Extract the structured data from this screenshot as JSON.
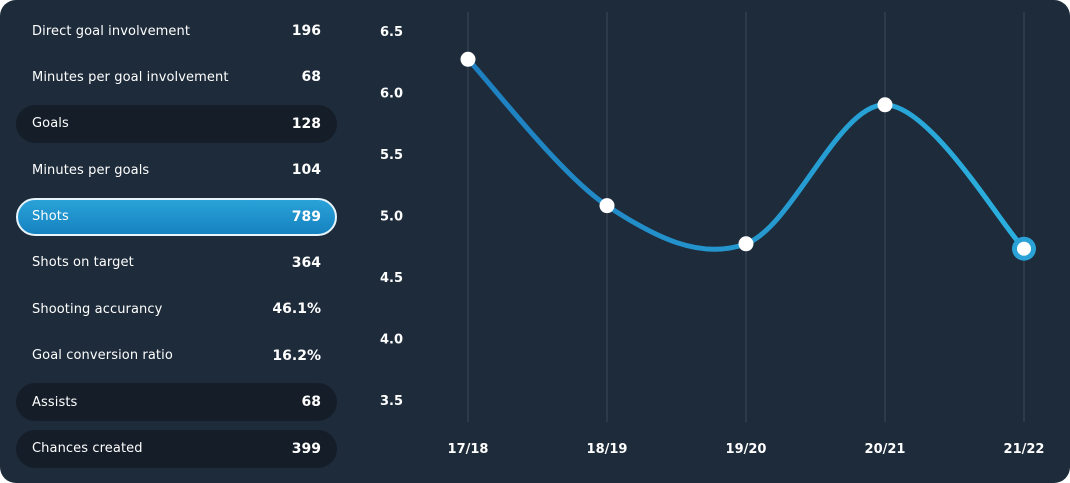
{
  "stats": [
    {
      "label": "Direct goal involvement",
      "value": "196",
      "style": "plain"
    },
    {
      "label": "Minutes per goal involvement",
      "value": "68",
      "style": "plain"
    },
    {
      "label": "Goals",
      "value": "128",
      "style": "dark"
    },
    {
      "label": "Minutes per goals",
      "value": "104",
      "style": "plain"
    },
    {
      "label": "Shots",
      "value": "789",
      "style": "active"
    },
    {
      "label": "Shots on target",
      "value": "364",
      "style": "plain"
    },
    {
      "label": "Shooting accurancy",
      "value": "46.1%",
      "style": "plain"
    },
    {
      "label": "Goal conversion ratio",
      "value": "16.2%",
      "style": "plain"
    },
    {
      "label": "Assists",
      "value": "68",
      "style": "dark"
    },
    {
      "label": "Chances created",
      "value": "399",
      "style": "dark"
    }
  ],
  "colors": {
    "background": "#1d2b3a",
    "dark_row": "#151d28",
    "accent": "#1f9ad6",
    "line": "#2aa2d8",
    "grid": "#3a4a5a",
    "text": "#ffffff"
  },
  "chart_data": {
    "type": "line",
    "categories": [
      "17/18",
      "18/19",
      "19/20",
      "20/21",
      "21/22"
    ],
    "values": [
      6.27,
      5.08,
      4.77,
      5.9,
      4.73
    ],
    "yticks": [
      "6.5",
      "6.0",
      "5.5",
      "5.0",
      "4.5",
      "4.0",
      "3.5"
    ],
    "ylim": [
      3.5,
      6.5
    ],
    "grid": "vertical",
    "highlight_last": true
  }
}
